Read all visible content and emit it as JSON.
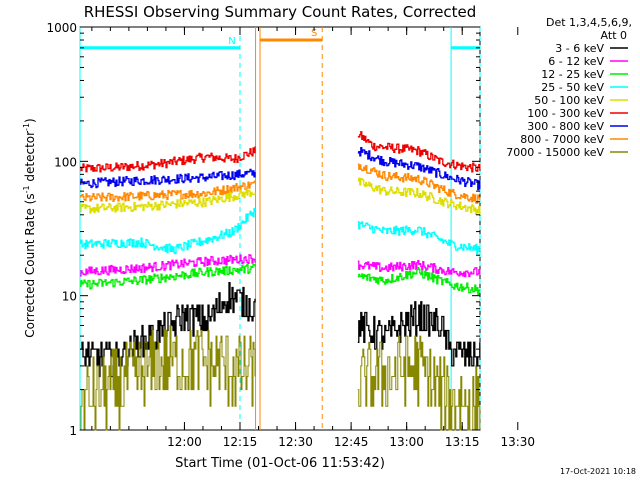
{
  "chart_data": {
    "type": "line",
    "title": "RHESSI Observing Summary Count Rates, Corrected",
    "xlabel": "Start Time (01-Oct-06 11:53:42)",
    "ylabel": "Corrected Count Rate (s⁻¹ detector⁻¹)",
    "ylabel_parts": {
      "main": "Corrected Count Rate (s",
      "sup1": "-1",
      "mid": " detector",
      "sup2": "-1",
      "end": ")"
    },
    "yscale": "log",
    "xlim": [
      11.53,
      13.33
    ],
    "ylim": [
      1,
      1000
    ],
    "x_ticks": [
      {
        "value": 12.0,
        "label": "12:00"
      },
      {
        "value": 12.25,
        "label": "12:15"
      },
      {
        "value": 12.5,
        "label": "12:30"
      },
      {
        "value": 12.75,
        "label": "12:45"
      },
      {
        "value": 13.0,
        "label": "13:00"
      },
      {
        "value": 13.25,
        "label": "13:15"
      },
      {
        "value": 13.5,
        "label": "13:30"
      }
    ],
    "y_ticks": [
      {
        "value": 1,
        "label": "1"
      },
      {
        "value": 10,
        "label": "10"
      },
      {
        "value": 100,
        "label": "100"
      },
      {
        "value": 1000,
        "label": "1000"
      }
    ],
    "legend": {
      "placement": "right",
      "header": [
        "Det 1,3,4,5,6,9,",
        "Att 0"
      ],
      "entries": [
        {
          "label": "3 - 6 keV",
          "color": "#000000"
        },
        {
          "label": "6 - 12 keV",
          "color": "#ff00ff"
        },
        {
          "label": "12 - 25 keV",
          "color": "#00ee00"
        },
        {
          "label": "25 - 50 keV",
          "color": "#00ffff"
        },
        {
          "label": "50 - 100 keV",
          "color": "#dddd00"
        },
        {
          "label": "100 - 300 keV",
          "color": "#ee0000"
        },
        {
          "label": "300 - 800 keV",
          "color": "#0000ee"
        },
        {
          "label": "800 - 7000 keV",
          "color": "#ff8800"
        },
        {
          "label": "7000 - 15000 keV",
          "color": "#888800"
        }
      ]
    },
    "segments": [
      {
        "name": "1",
        "x": [
          11.53,
          12.32
        ]
      },
      {
        "name": "2",
        "x": [
          12.78,
          13.33
        ]
      }
    ],
    "series": [
      {
        "key": "e1",
        "color": "#ee0000",
        "seg1": {
          "x": [
            11.53,
            11.7,
            11.9,
            12.1,
            12.22,
            12.32
          ],
          "y": [
            88,
            90,
            96,
            108,
            104,
            120
          ]
        },
        "seg2": {
          "x": [
            12.78,
            12.85,
            12.95,
            13.05,
            13.15,
            13.25,
            13.33
          ],
          "y": [
            160,
            130,
            125,
            120,
            100,
            92,
            88
          ]
        }
      },
      {
        "key": "e2",
        "color": "#0000ee",
        "seg1": {
          "x": [
            11.53,
            11.8,
            12.1,
            12.32
          ],
          "y": [
            68,
            72,
            76,
            82
          ]
        },
        "seg2": {
          "x": [
            12.78,
            12.9,
            13.05,
            13.2,
            13.33
          ],
          "y": [
            120,
            100,
            92,
            75,
            66
          ]
        }
      },
      {
        "key": "e3",
        "color": "#ff8800",
        "seg1": {
          "x": [
            11.53,
            11.8,
            12.1,
            12.32
          ],
          "y": [
            53,
            55,
            58,
            68
          ]
        },
        "seg2": {
          "x": [
            12.78,
            12.9,
            13.05,
            13.2,
            13.33
          ],
          "y": [
            95,
            78,
            74,
            58,
            52
          ]
        }
      },
      {
        "key": "e4",
        "color": "#dddd00",
        "seg1": {
          "x": [
            11.53,
            11.8,
            12.1,
            12.32
          ],
          "y": [
            44,
            46,
            50,
            60
          ]
        },
        "seg2": {
          "x": [
            12.78,
            12.9,
            13.05,
            13.2,
            13.33
          ],
          "y": [
            70,
            60,
            58,
            48,
            43
          ]
        }
      },
      {
        "key": "e5",
        "color": "#00ffff",
        "seg1": {
          "x": [
            11.53,
            11.8,
            11.95,
            12.1,
            12.22,
            12.32
          ],
          "y": [
            24,
            25,
            22,
            26,
            30,
            44
          ]
        },
        "seg2": {
          "x": [
            12.78,
            12.9,
            13.05,
            13.2,
            13.33
          ],
          "y": [
            34,
            30,
            31,
            24,
            22
          ]
        }
      },
      {
        "key": "e6",
        "color": "#ff00ff",
        "seg1": {
          "x": [
            11.53,
            11.8,
            12.1,
            12.32
          ],
          "y": [
            15,
            16,
            18,
            19
          ]
        },
        "seg2": {
          "x": [
            12.78,
            12.9,
            13.05,
            13.2,
            13.33
          ],
          "y": [
            17,
            16,
            17,
            15,
            15
          ]
        }
      },
      {
        "key": "e7",
        "color": "#00ee00",
        "seg1": {
          "x": [
            11.53,
            11.8,
            12.1,
            12.32
          ],
          "y": [
            12,
            13,
            15,
            16
          ]
        },
        "seg2": {
          "x": [
            12.78,
            12.9,
            13.05,
            13.2,
            13.33
          ],
          "y": [
            14,
            13,
            15,
            12,
            11
          ]
        }
      },
      {
        "key": "e8",
        "color": "#000000",
        "seg1": {
          "x": [
            11.53,
            11.7,
            11.9,
            12.0,
            12.1,
            12.2,
            12.32
          ],
          "y": [
            3.5,
            3.5,
            5.5,
            7,
            6.5,
            10,
            8
          ]
        },
        "seg2": {
          "x": [
            12.78,
            12.9,
            13.05,
            13.15,
            13.2,
            13.33
          ],
          "y": [
            6,
            5,
            7,
            6,
            3.8,
            3.5
          ]
        }
      },
      {
        "key": "e9",
        "color": "#888800",
        "seg1": {
          "x": [
            11.53,
            11.7,
            11.9,
            12.1,
            12.32
          ],
          "y": [
            1.6,
            2.2,
            3.2,
            3.2,
            2.6
          ]
        },
        "seg2": {
          "x": [
            12.78,
            12.9,
            13.05,
            13.2,
            13.33
          ],
          "y": [
            2.2,
            2.6,
            3.0,
            1.6,
            1.6
          ]
        }
      }
    ],
    "annotations": [
      {
        "label": "N",
        "color": "#00ffff",
        "x": [
          11.53,
          12.25
        ],
        "y": 700
      },
      {
        "label": "",
        "color": "#00ffff",
        "x": [
          13.2,
          13.33
        ],
        "y": 700
      },
      {
        "label": "S",
        "color": "#ff8800",
        "x": [
          12.34,
          12.62
        ],
        "y": 800
      }
    ],
    "vlines": [
      {
        "x": 11.53,
        "color": "#00ffff",
        "dash": false
      },
      {
        "x": 12.25,
        "color": "#00ffff",
        "dash": true
      },
      {
        "x": 12.32,
        "color": "#ff8800",
        "dash": false
      },
      {
        "x": 12.34,
        "color": "#ff8800",
        "dash": false
      },
      {
        "x": 12.62,
        "color": "#ff8800",
        "dash": true
      },
      {
        "x": 13.2,
        "color": "#00ffff",
        "dash": false
      },
      {
        "x": 13.33,
        "color": "#00ffff",
        "dash": true
      }
    ]
  },
  "footer": {
    "timestamp": "17-Oct-2021 10:18"
  }
}
